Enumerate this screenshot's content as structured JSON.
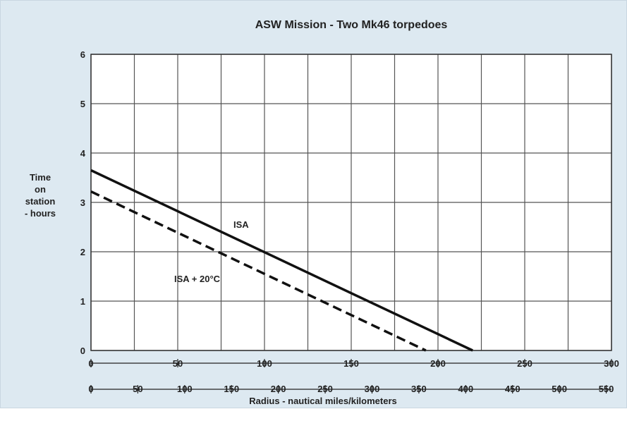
{
  "chart_data": {
    "type": "line",
    "title": "ASW Mission - Two Mk46 torpedoes",
    "ylabel": [
      "Time",
      "on",
      "station",
      "- hours"
    ],
    "xlabel": "Radius - nautical miles/kilometers",
    "x_nm_ticks": [
      0,
      50,
      100,
      150,
      200,
      250,
      300
    ],
    "x_km_ticks": [
      0,
      50,
      100,
      150,
      200,
      250,
      300,
      350,
      400,
      450,
      500,
      550
    ],
    "y_ticks": [
      0,
      1,
      2,
      3,
      4,
      5,
      6
    ],
    "xlim_nm": [
      0,
      300
    ],
    "xlim_km": [
      0,
      555.6
    ],
    "ylim": [
      0,
      6
    ],
    "grid": true,
    "series": [
      {
        "name": "ISA",
        "style": "solid",
        "x": [
          0,
          220
        ],
        "y": [
          3.65,
          0
        ]
      },
      {
        "name": "ISA + 20°C",
        "style": "dashed",
        "x": [
          0,
          193
        ],
        "y": [
          3.22,
          0
        ]
      }
    ],
    "colors": {
      "background": "#dde9f1",
      "plot": "#ffffff",
      "grid": "#555555",
      "line": "#111111"
    }
  }
}
